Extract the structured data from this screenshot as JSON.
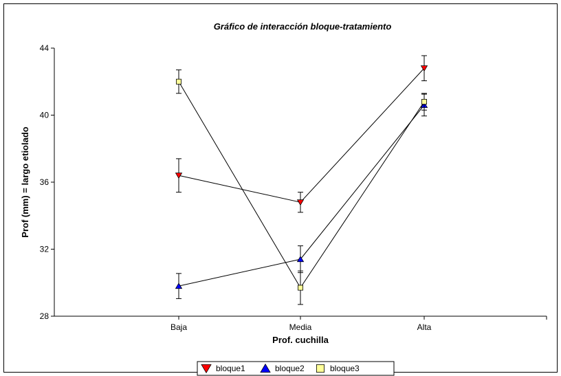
{
  "chart_data": {
    "type": "line",
    "title": "Gráfico de interacción bloque-tratamiento",
    "xlabel": "Prof. cuchilla",
    "ylabel": "Prof (mm) = largo etiolado",
    "categories": [
      "Baja",
      "Media",
      "Alta"
    ],
    "ylim": [
      28,
      44
    ],
    "yticks": [
      28,
      32,
      36,
      40,
      44
    ],
    "grid": false,
    "legend_position": "bottom",
    "series": [
      {
        "name": "bloque1",
        "marker": "triangle-down",
        "color": "#ff0000",
        "values": [
          36.4,
          34.8,
          42.8
        ],
        "error": [
          1.0,
          0.6,
          0.75
        ]
      },
      {
        "name": "bloque2",
        "marker": "triangle-up",
        "color": "#0000ff",
        "values": [
          29.8,
          31.4,
          40.6
        ],
        "error": [
          0.75,
          0.8,
          0.65
        ]
      },
      {
        "name": "bloque3",
        "marker": "square",
        "color": "#ffff99",
        "values": [
          42.0,
          29.7,
          40.8
        ],
        "error": [
          0.7,
          1.0,
          0.5
        ]
      }
    ]
  }
}
